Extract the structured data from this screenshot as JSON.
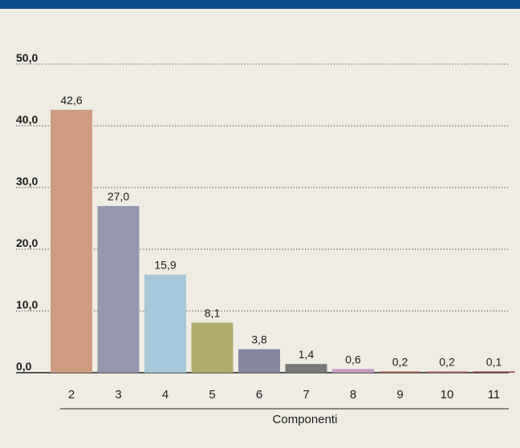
{
  "colors": {
    "background": "#efede3",
    "top_bar": "#0d4a8a",
    "bar_colors": [
      "#cf9c82",
      "#9497ad",
      "#a6c7d9",
      "#b2ad6c",
      "#8686a3",
      "#787878",
      "#c59bc2",
      "#b35f58",
      "#b56565",
      "#8c3c3c"
    ]
  },
  "chart_data": {
    "type": "bar",
    "categories": [
      "2",
      "3",
      "4",
      "5",
      "6",
      "7",
      "8",
      "9",
      "10",
      "11"
    ],
    "values": [
      42.6,
      27.0,
      15.9,
      8.1,
      3.8,
      1.4,
      0.6,
      0.2,
      0.2,
      0.1
    ],
    "value_labels": [
      "42,6",
      "27,0",
      "15,9",
      "8,1",
      "3,8",
      "1,4",
      "0,6",
      "0,2",
      "0,2",
      "0,1"
    ],
    "yticks": [
      0,
      10,
      20,
      30,
      40,
      50
    ],
    "ytick_labels": [
      "0,0",
      "10,0",
      "20,0",
      "30,0",
      "40,0",
      "50,0"
    ],
    "ylim": [
      0,
      50
    ],
    "xlabel": "Componenti",
    "ylabel": "",
    "title": "",
    "grid": "dotted horizontal"
  }
}
